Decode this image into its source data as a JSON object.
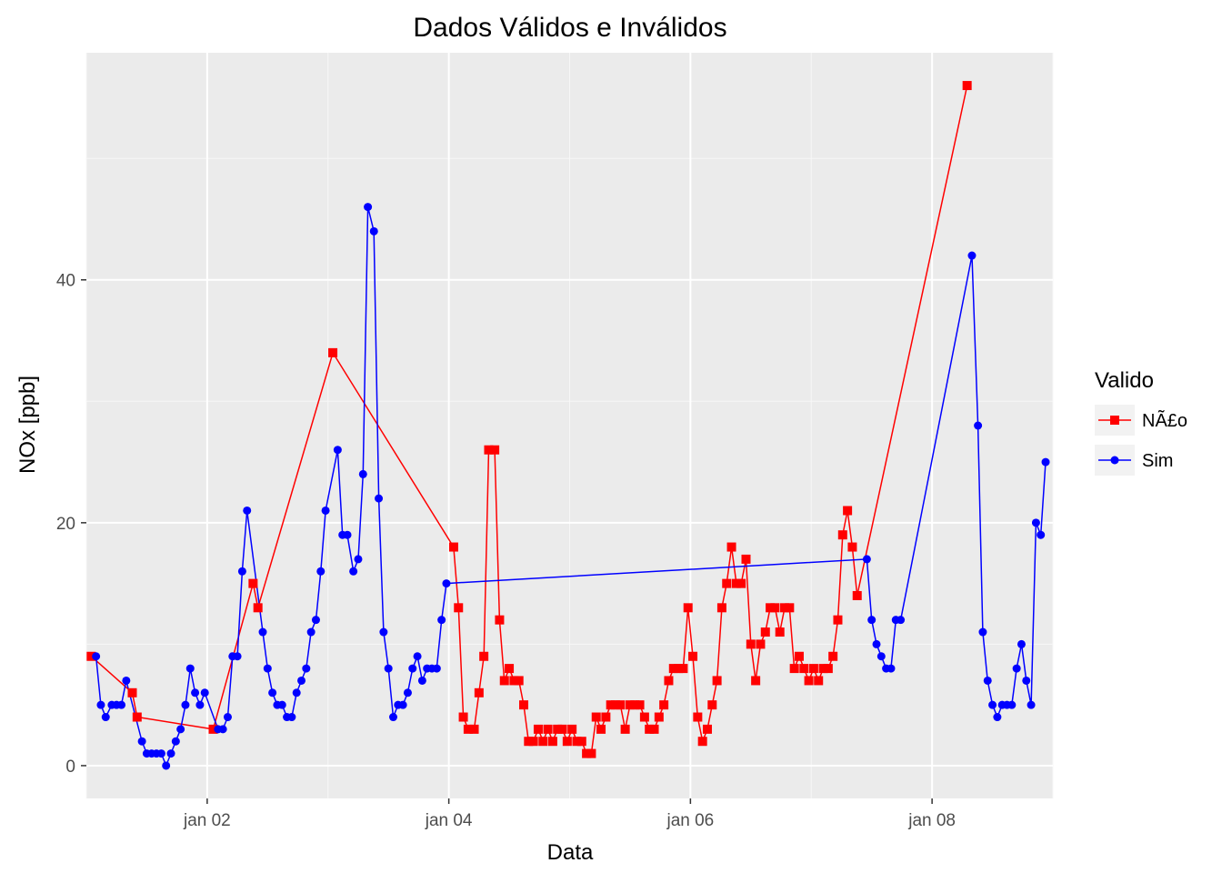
{
  "chart_data": {
    "type": "line",
    "title": "Dados Válidos e Inválidos",
    "xlabel": "Data",
    "ylabel": "NOx [ppb]",
    "x_unit": "days (January)",
    "xlim": [
      1.0,
      9.0
    ],
    "ylim": [
      -2.7,
      58.7
    ],
    "x_ticks": [
      {
        "value": 2,
        "label": "jan 02"
      },
      {
        "value": 4,
        "label": "jan 04"
      },
      {
        "value": 6,
        "label": "jan 06"
      },
      {
        "value": 8,
        "label": "jan 08"
      }
    ],
    "y_ticks": [
      {
        "value": 0,
        "label": "0"
      },
      {
        "value": 20,
        "label": "20"
      },
      {
        "value": 40,
        "label": "40"
      }
    ],
    "grid": true,
    "legend": {
      "title": "Valido",
      "position": "right"
    },
    "series": [
      {
        "name": "NÃ£o",
        "color": "#ff0000",
        "marker": "square",
        "points": [
          [
            1.04,
            9
          ],
          [
            1.38,
            6
          ],
          [
            1.42,
            4
          ],
          [
            2.05,
            3
          ],
          [
            2.38,
            15
          ],
          [
            2.42,
            13
          ],
          [
            3.04,
            34
          ],
          [
            4.04,
            18
          ],
          [
            4.08,
            13
          ],
          [
            4.12,
            4
          ],
          [
            4.16,
            3
          ],
          [
            4.21,
            3
          ],
          [
            4.25,
            6
          ],
          [
            4.29,
            9
          ],
          [
            4.33,
            26
          ],
          [
            4.38,
            26
          ],
          [
            4.42,
            12
          ],
          [
            4.46,
            7
          ],
          [
            4.5,
            8
          ],
          [
            4.54,
            7
          ],
          [
            4.58,
            7
          ],
          [
            4.62,
            5
          ],
          [
            4.66,
            2
          ],
          [
            4.7,
            2
          ],
          [
            4.74,
            3
          ],
          [
            4.78,
            2
          ],
          [
            4.82,
            3
          ],
          [
            4.86,
            2
          ],
          [
            4.9,
            3
          ],
          [
            4.94,
            3
          ],
          [
            4.98,
            2
          ],
          [
            5.02,
            3
          ],
          [
            5.06,
            2
          ],
          [
            5.1,
            2
          ],
          [
            5.14,
            1
          ],
          [
            5.18,
            1
          ],
          [
            5.22,
            4
          ],
          [
            5.26,
            3
          ],
          [
            5.3,
            4
          ],
          [
            5.34,
            5
          ],
          [
            5.38,
            5
          ],
          [
            5.42,
            5
          ],
          [
            5.46,
            3
          ],
          [
            5.5,
            5
          ],
          [
            5.54,
            5
          ],
          [
            5.58,
            5
          ],
          [
            5.62,
            4
          ],
          [
            5.66,
            3
          ],
          [
            5.7,
            3
          ],
          [
            5.74,
            4
          ],
          [
            5.78,
            5
          ],
          [
            5.82,
            7
          ],
          [
            5.86,
            8
          ],
          [
            5.9,
            8
          ],
          [
            5.94,
            8
          ],
          [
            5.98,
            13
          ],
          [
            6.02,
            9
          ],
          [
            6.06,
            4
          ],
          [
            6.1,
            2
          ],
          [
            6.14,
            3
          ],
          [
            6.18,
            5
          ],
          [
            6.22,
            7
          ],
          [
            6.26,
            13
          ],
          [
            6.3,
            15
          ],
          [
            6.34,
            18
          ],
          [
            6.38,
            15
          ],
          [
            6.42,
            15
          ],
          [
            6.46,
            17
          ],
          [
            6.5,
            10
          ],
          [
            6.54,
            7
          ],
          [
            6.58,
            10
          ],
          [
            6.62,
            11
          ],
          [
            6.66,
            13
          ],
          [
            6.7,
            13
          ],
          [
            6.74,
            11
          ],
          [
            6.78,
            13
          ],
          [
            6.82,
            13
          ],
          [
            6.86,
            8
          ],
          [
            6.9,
            9
          ],
          [
            6.94,
            8
          ],
          [
            6.98,
            7
          ],
          [
            7.02,
            8
          ],
          [
            7.06,
            7
          ],
          [
            7.1,
            8
          ],
          [
            7.14,
            8
          ],
          [
            7.18,
            9
          ],
          [
            7.22,
            12
          ],
          [
            7.26,
            19
          ],
          [
            7.3,
            21
          ],
          [
            7.34,
            18
          ],
          [
            7.38,
            14
          ],
          [
            8.29,
            56
          ]
        ]
      },
      {
        "name": "Sim",
        "color": "#0000ff",
        "marker": "circle",
        "points": [
          [
            1.08,
            9
          ],
          [
            1.12,
            5
          ],
          [
            1.16,
            4
          ],
          [
            1.21,
            5
          ],
          [
            1.25,
            5
          ],
          [
            1.29,
            5
          ],
          [
            1.33,
            7
          ],
          [
            1.46,
            2
          ],
          [
            1.5,
            1
          ],
          [
            1.54,
            1
          ],
          [
            1.58,
            1
          ],
          [
            1.62,
            1
          ],
          [
            1.66,
            0
          ],
          [
            1.7,
            1
          ],
          [
            1.74,
            2
          ],
          [
            1.78,
            3
          ],
          [
            1.82,
            5
          ],
          [
            1.86,
            8
          ],
          [
            1.9,
            6
          ],
          [
            1.94,
            5
          ],
          [
            1.98,
            6
          ],
          [
            2.09,
            3
          ],
          [
            2.13,
            3
          ],
          [
            2.17,
            4
          ],
          [
            2.21,
            9
          ],
          [
            2.25,
            9
          ],
          [
            2.29,
            16
          ],
          [
            2.33,
            21
          ],
          [
            2.46,
            11
          ],
          [
            2.5,
            8
          ],
          [
            2.54,
            6
          ],
          [
            2.58,
            5
          ],
          [
            2.62,
            5
          ],
          [
            2.66,
            4
          ],
          [
            2.7,
            4
          ],
          [
            2.74,
            6
          ],
          [
            2.78,
            7
          ],
          [
            2.82,
            8
          ],
          [
            2.86,
            11
          ],
          [
            2.9,
            12
          ],
          [
            2.94,
            16
          ],
          [
            2.98,
            21
          ],
          [
            3.08,
            26
          ],
          [
            3.12,
            19
          ],
          [
            3.16,
            19
          ],
          [
            3.21,
            16
          ],
          [
            3.25,
            17
          ],
          [
            3.29,
            24
          ],
          [
            3.33,
            46
          ],
          [
            3.38,
            44
          ],
          [
            3.42,
            22
          ],
          [
            3.46,
            11
          ],
          [
            3.5,
            8
          ],
          [
            3.54,
            4
          ],
          [
            3.58,
            5
          ],
          [
            3.62,
            5
          ],
          [
            3.66,
            6
          ],
          [
            3.7,
            8
          ],
          [
            3.74,
            9
          ],
          [
            3.78,
            7
          ],
          [
            3.82,
            8
          ],
          [
            3.86,
            8
          ],
          [
            3.9,
            8
          ],
          [
            3.94,
            12
          ],
          [
            3.98,
            15
          ],
          [
            7.46,
            17
          ],
          [
            7.5,
            12
          ],
          [
            7.54,
            10
          ],
          [
            7.58,
            9
          ],
          [
            7.62,
            8
          ],
          [
            7.66,
            8
          ],
          [
            7.7,
            12
          ],
          [
            7.74,
            12
          ],
          [
            8.33,
            42
          ],
          [
            8.38,
            28
          ],
          [
            8.42,
            11
          ],
          [
            8.46,
            7
          ],
          [
            8.5,
            5
          ],
          [
            8.54,
            4
          ],
          [
            8.58,
            5
          ],
          [
            8.62,
            5
          ],
          [
            8.66,
            5
          ],
          [
            8.7,
            8
          ],
          [
            8.74,
            10
          ],
          [
            8.78,
            7
          ],
          [
            8.82,
            5
          ],
          [
            8.86,
            20
          ],
          [
            8.9,
            19
          ],
          [
            8.94,
            25
          ]
        ]
      }
    ]
  }
}
